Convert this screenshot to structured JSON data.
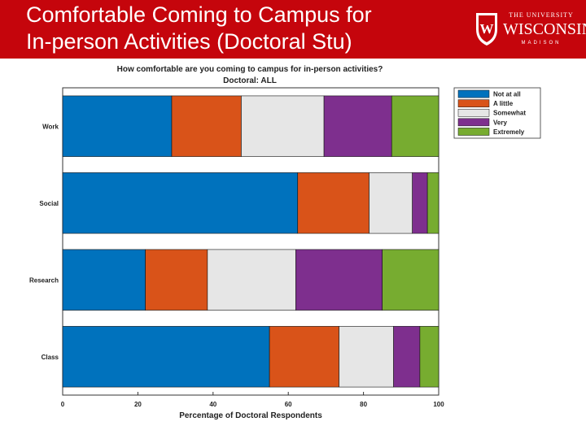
{
  "slide": {
    "title_line1": "Comfortable Coming to Campus for",
    "title_line2": "In-person Activities (Doctoral Stu)"
  },
  "logo": {
    "line1": "THE UNIVERSITY",
    "line2": "WISCONSIN",
    "line3": "MADISON",
    "crest_letter": "W"
  },
  "colors": {
    "header_bg": "#c5050c",
    "not_at_all": "#0072bd",
    "a_little": "#d95319",
    "somewhat": "#e6e6e6",
    "very": "#7e2f8e",
    "extremely": "#77ac30"
  },
  "chart_data": {
    "type": "bar",
    "orientation": "horizontal",
    "stacked": true,
    "title": "How comfortable are you coming to campus for in-person activities?",
    "subtitle": "Doctoral: ALL",
    "xlabel": "Percentage of Doctoral Respondents",
    "ylabel": "",
    "xlim": [
      0,
      100
    ],
    "xticks": [
      0,
      20,
      40,
      60,
      80,
      100
    ],
    "categories": [
      "Work",
      "Social",
      "Research",
      "Class"
    ],
    "series": [
      {
        "name": "Not at all",
        "color": "#0072bd",
        "values": [
          29,
          62.5,
          22,
          55
        ]
      },
      {
        "name": "A little",
        "color": "#d95319",
        "values": [
          18.5,
          19,
          16.5,
          18.5
        ]
      },
      {
        "name": "Somewhat",
        "color": "#e6e6e6",
        "values": [
          22,
          11.5,
          23.5,
          14.5
        ]
      },
      {
        "name": "Very",
        "color": "#7e2f8e",
        "values": [
          18,
          4,
          23,
          7
        ]
      },
      {
        "name": "Extremely",
        "color": "#77ac30",
        "values": [
          12.5,
          3,
          15,
          5
        ]
      }
    ],
    "legend_position": "top-right",
    "grid": false
  }
}
